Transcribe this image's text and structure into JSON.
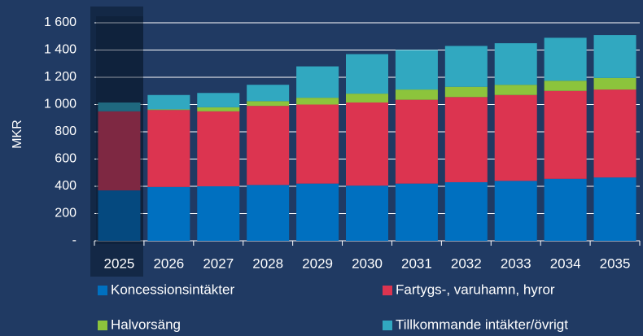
{
  "chart_data": {
    "type": "stacked_bar",
    "y_label": "MKR",
    "categories": [
      "2025",
      "2026",
      "2027",
      "2028",
      "2029",
      "2030",
      "2031",
      "2032",
      "2033",
      "2034",
      "2035"
    ],
    "series": [
      {
        "name": "Koncessionsintäkter",
        "color": "#0070c0",
        "values": [
          370,
          395,
          400,
          410,
          420,
          405,
          420,
          430,
          440,
          455,
          465
        ]
      },
      {
        "name": "Fartygs-, varuhamn, hyror",
        "color": "#dc3450",
        "values": [
          580,
          565,
          550,
          580,
          580,
          610,
          615,
          625,
          630,
          645,
          645
        ]
      },
      {
        "name": "Halvorsäng",
        "color": "#8cc43c",
        "values": [
          0,
          5,
          30,
          35,
          50,
          65,
          75,
          75,
          75,
          75,
          85
        ]
      },
      {
        "name": "Tillkommande intäkter/övrigt",
        "color": "#31a8c0",
        "values": [
          65,
          105,
          105,
          120,
          230,
          290,
          290,
          300,
          305,
          315,
          315
        ]
      }
    ],
    "ylim": [
      0,
      1600
    ],
    "yticks": [
      {
        "value": 0,
        "label": "-"
      },
      200,
      400,
      600,
      800,
      {
        "value": 1000,
        "label": "1 000"
      },
      {
        "value": 1200,
        "label": "1 200"
      },
      {
        "value": 1400,
        "label": "1 400"
      },
      {
        "value": 1600,
        "label": "1 600"
      }
    ],
    "grid": true
  }
}
